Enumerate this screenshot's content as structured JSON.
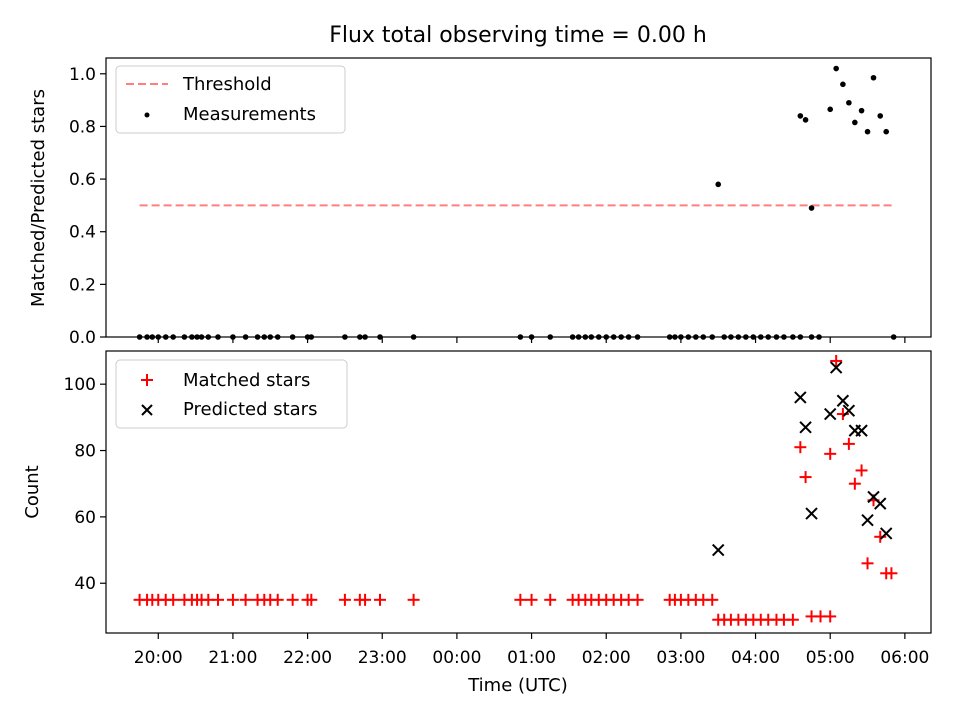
{
  "chart_data": [
    {
      "type": "scatter",
      "title": "Flux total observing time = 0.00 h",
      "xlabel": "",
      "ylabel": "Matched/Predicted stars",
      "xlim": [
        19.3,
        6.35
      ],
      "ylim": [
        0,
        1.06
      ],
      "yticks": [
        0.0,
        0.2,
        0.4,
        0.6,
        0.8,
        1.0
      ],
      "ytick_labels": [
        "0.0",
        "0.2",
        "0.4",
        "0.6",
        "0.8",
        "1.0"
      ],
      "legend_position": "top-left",
      "threshold": {
        "name": "Threshold",
        "y": 0.5,
        "x_range": [
          19.75,
          5.85
        ],
        "color": "#ff7f7f"
      },
      "series": [
        {
          "name": "Measurements",
          "color": "#000000",
          "marker": "dot",
          "points": [
            [
              19.75,
              0
            ],
            [
              19.85,
              0
            ],
            [
              19.92,
              0
            ],
            [
              20.0,
              0
            ],
            [
              20.1,
              0
            ],
            [
              20.2,
              0
            ],
            [
              20.35,
              0
            ],
            [
              20.45,
              0
            ],
            [
              20.52,
              0
            ],
            [
              20.58,
              0
            ],
            [
              20.67,
              0
            ],
            [
              20.8,
              0
            ],
            [
              21.0,
              0
            ],
            [
              21.17,
              0
            ],
            [
              21.33,
              0
            ],
            [
              21.42,
              0
            ],
            [
              21.5,
              0
            ],
            [
              21.6,
              0
            ],
            [
              21.8,
              0
            ],
            [
              22.0,
              0
            ],
            [
              22.05,
              0
            ],
            [
              22.5,
              0
            ],
            [
              22.7,
              0
            ],
            [
              22.77,
              0
            ],
            [
              22.97,
              0
            ],
            [
              23.42,
              0
            ],
            [
              24.85,
              0
            ],
            [
              25.0,
              0
            ],
            [
              25.25,
              0
            ],
            [
              25.55,
              0
            ],
            [
              25.63,
              0
            ],
            [
              25.72,
              0
            ],
            [
              25.8,
              0
            ],
            [
              25.9,
              0
            ],
            [
              26.0,
              0
            ],
            [
              26.1,
              0
            ],
            [
              26.2,
              0
            ],
            [
              26.3,
              0
            ],
            [
              26.42,
              0
            ],
            [
              26.85,
              0
            ],
            [
              26.92,
              0
            ],
            [
              27.0,
              0
            ],
            [
              27.1,
              0
            ],
            [
              27.2,
              0
            ],
            [
              27.3,
              0
            ],
            [
              27.42,
              0
            ],
            [
              27.58,
              0
            ],
            [
              27.67,
              0
            ],
            [
              27.77,
              0
            ],
            [
              27.87,
              0
            ],
            [
              27.97,
              0
            ],
            [
              28.07,
              0
            ],
            [
              28.17,
              0
            ],
            [
              28.28,
              0
            ],
            [
              28.38,
              0
            ],
            [
              28.5,
              0
            ],
            [
              28.6,
              0
            ],
            [
              28.75,
              0
            ],
            [
              28.85,
              0
            ],
            [
              29.85,
              0
            ],
            [
              27.5,
              0.58
            ],
            [
              28.6,
              0.84
            ],
            [
              28.67,
              0.825
            ],
            [
              28.75,
              0.49
            ],
            [
              29.0,
              0.865
            ],
            [
              29.08,
              1.02
            ],
            [
              29.17,
              0.96
            ],
            [
              29.25,
              0.89
            ],
            [
              29.33,
              0.815
            ],
            [
              29.42,
              0.86
            ],
            [
              29.5,
              0.78
            ],
            [
              29.58,
              0.985
            ],
            [
              29.67,
              0.84
            ],
            [
              29.75,
              0.78
            ]
          ]
        }
      ]
    },
    {
      "type": "scatter",
      "title": "",
      "xlabel": "Time (UTC)",
      "ylabel": "Count",
      "xlim": [
        19.3,
        6.35
      ],
      "ylim": [
        25,
        110
      ],
      "yticks": [
        40,
        60,
        80,
        100
      ],
      "ytick_labels": [
        "40",
        "60",
        "80",
        "100"
      ],
      "xticks": [
        20,
        21,
        22,
        23,
        0,
        1,
        2,
        3,
        4,
        5,
        6
      ],
      "xtick_labels": [
        "20:00",
        "21:00",
        "22:00",
        "23:00",
        "00:00",
        "01:00",
        "02:00",
        "03:00",
        "04:00",
        "05:00",
        "06:00"
      ],
      "legend_position": "top-left",
      "series": [
        {
          "name": "Matched stars",
          "color": "#ff0000",
          "marker": "plus",
          "points": [
            [
              19.75,
              35
            ],
            [
              19.85,
              35
            ],
            [
              19.92,
              35
            ],
            [
              20.0,
              35
            ],
            [
              20.1,
              35
            ],
            [
              20.2,
              35
            ],
            [
              20.35,
              35
            ],
            [
              20.45,
              35
            ],
            [
              20.52,
              35
            ],
            [
              20.58,
              35
            ],
            [
              20.67,
              35
            ],
            [
              20.8,
              35
            ],
            [
              21.0,
              35
            ],
            [
              21.17,
              35
            ],
            [
              21.33,
              35
            ],
            [
              21.42,
              35
            ],
            [
              21.5,
              35
            ],
            [
              21.6,
              35
            ],
            [
              21.8,
              35
            ],
            [
              22.0,
              35
            ],
            [
              22.05,
              35
            ],
            [
              22.5,
              35
            ],
            [
              22.7,
              35
            ],
            [
              22.77,
              35
            ],
            [
              22.97,
              35
            ],
            [
              23.42,
              35
            ],
            [
              24.85,
              35
            ],
            [
              25.0,
              35
            ],
            [
              25.25,
              35
            ],
            [
              25.55,
              35
            ],
            [
              25.63,
              35
            ],
            [
              25.72,
              35
            ],
            [
              25.8,
              35
            ],
            [
              25.9,
              35
            ],
            [
              26.0,
              35
            ],
            [
              26.1,
              35
            ],
            [
              26.2,
              35
            ],
            [
              26.3,
              35
            ],
            [
              26.42,
              35
            ],
            [
              26.85,
              35
            ],
            [
              26.92,
              35
            ],
            [
              27.0,
              35
            ],
            [
              27.1,
              35
            ],
            [
              27.2,
              35
            ],
            [
              27.3,
              35
            ],
            [
              27.42,
              35
            ],
            [
              27.5,
              29
            ],
            [
              27.58,
              29
            ],
            [
              27.67,
              29
            ],
            [
              27.77,
              29
            ],
            [
              27.87,
              29
            ],
            [
              27.97,
              29
            ],
            [
              28.07,
              29
            ],
            [
              28.17,
              29
            ],
            [
              28.28,
              29
            ],
            [
              28.38,
              29
            ],
            [
              28.5,
              29
            ],
            [
              28.6,
              81
            ],
            [
              28.67,
              72
            ],
            [
              28.75,
              30
            ],
            [
              28.87,
              30
            ],
            [
              29.0,
              30
            ],
            [
              29.0,
              79
            ],
            [
              29.08,
              107
            ],
            [
              29.17,
              91
            ],
            [
              29.25,
              82
            ],
            [
              29.33,
              70
            ],
            [
              29.42,
              74
            ],
            [
              29.5,
              46
            ],
            [
              29.58,
              65
            ],
            [
              29.67,
              54
            ],
            [
              29.75,
              43
            ],
            [
              29.82,
              43
            ]
          ]
        },
        {
          "name": "Predicted stars",
          "color": "#000000",
          "marker": "x",
          "points": [
            [
              27.5,
              50
            ],
            [
              28.6,
              96
            ],
            [
              28.67,
              87
            ],
            [
              28.75,
              61
            ],
            [
              29.0,
              91
            ],
            [
              29.08,
              105
            ],
            [
              29.17,
              95
            ],
            [
              29.25,
              92
            ],
            [
              29.33,
              86
            ],
            [
              29.42,
              86
            ],
            [
              29.5,
              59
            ],
            [
              29.58,
              66
            ],
            [
              29.67,
              64
            ],
            [
              29.75,
              55
            ]
          ]
        }
      ]
    }
  ]
}
